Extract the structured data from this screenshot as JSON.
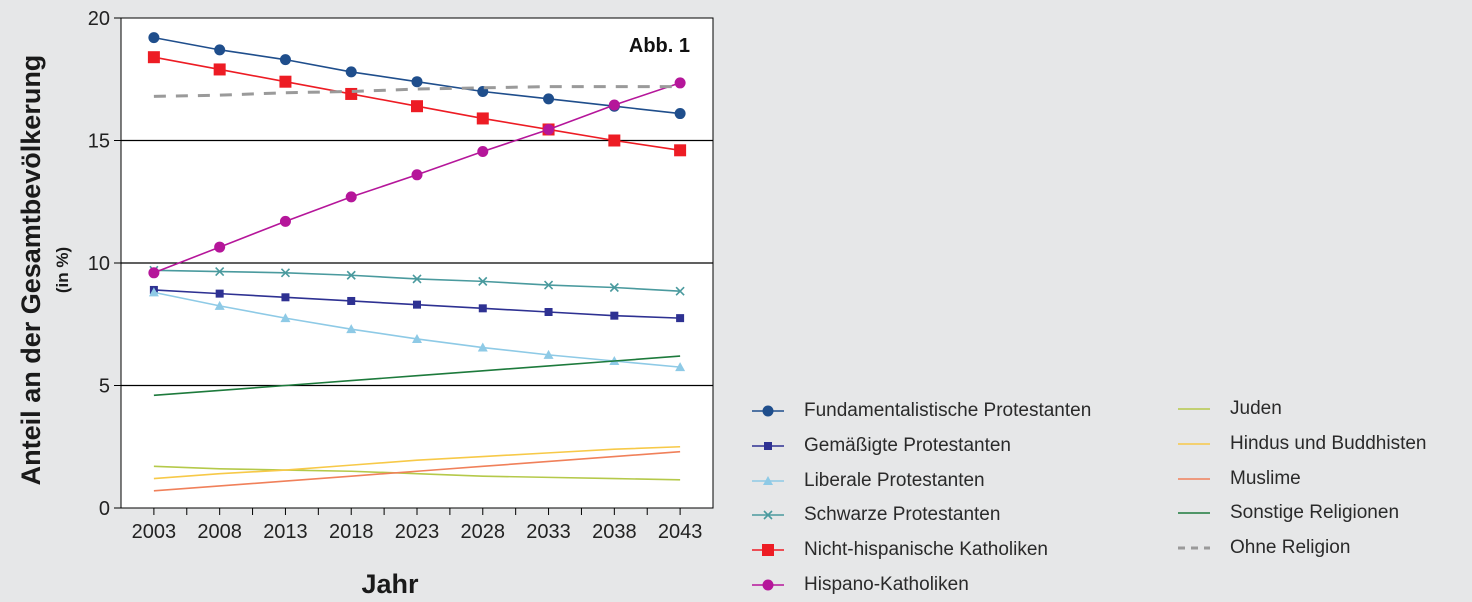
{
  "chart_data": {
    "type": "line",
    "title": "",
    "annotation": "Abb. 1",
    "xlabel": "Jahr",
    "ylabel": "Anteil an der Gesamtbevölkerung",
    "ylabel_sub": "(in %)",
    "x": [
      2003,
      2008,
      2013,
      2018,
      2023,
      2028,
      2033,
      2038,
      2043
    ],
    "xlim": [
      2000.5,
      2045.5
    ],
    "ylim": [
      0,
      20
    ],
    "yticks": [
      0,
      5,
      10,
      15,
      20
    ],
    "ytick_labels": [
      "0",
      "5",
      "10",
      "15",
      "20"
    ],
    "xtick_labels": [
      "2003",
      "2008",
      "2013",
      "2018",
      "2023",
      "2028",
      "2033",
      "2038",
      "2043"
    ],
    "grid": "horizontal at 5, 10, 15",
    "legend_position": "bottom-right, outside plot",
    "series": [
      {
        "name": "Fundamentalistische Protestanten",
        "color": "#1f4e8c",
        "marker": "circle",
        "dash": false,
        "values": [
          19.2,
          18.7,
          18.3,
          17.8,
          17.4,
          17.0,
          16.7,
          16.4,
          16.1
        ]
      },
      {
        "name": "Gemäßigte Protestanten",
        "color": "#2e3192",
        "marker": "square",
        "dash": false,
        "values": [
          8.9,
          8.75,
          8.6,
          8.45,
          8.3,
          8.15,
          8.0,
          7.85,
          7.75
        ]
      },
      {
        "name": "Liberale Protestanten",
        "color": "#8ecae6",
        "marker": "triangle",
        "dash": false,
        "values": [
          8.8,
          8.25,
          7.75,
          7.3,
          6.9,
          6.55,
          6.25,
          6.0,
          5.75
        ]
      },
      {
        "name": "Schwarze Protestanten",
        "color": "#4a9a9e",
        "marker": "x",
        "dash": false,
        "values": [
          9.7,
          9.65,
          9.6,
          9.5,
          9.35,
          9.25,
          9.1,
          9.0,
          8.85
        ]
      },
      {
        "name": "Nicht-hispanische Katholiken",
        "color": "#ed1c24",
        "marker": "bigsquare",
        "dash": false,
        "values": [
          18.4,
          17.9,
          17.4,
          16.9,
          16.4,
          15.9,
          15.45,
          15.0,
          14.6
        ]
      },
      {
        "name": "Hispano-Katholiken",
        "color": "#b5169a",
        "marker": "circle",
        "dash": false,
        "values": [
          9.6,
          10.65,
          11.7,
          12.7,
          13.6,
          14.55,
          15.45,
          16.45,
          17.35
        ]
      },
      {
        "name": "Juden",
        "color": "#b5c94a",
        "marker": "none",
        "dash": false,
        "values": [
          1.7,
          1.6,
          1.55,
          1.5,
          1.4,
          1.3,
          1.25,
          1.2,
          1.15
        ]
      },
      {
        "name": "Hindus und Buddhisten",
        "color": "#f7c948",
        "marker": "none",
        "dash": false,
        "values": [
          1.2,
          1.4,
          1.55,
          1.75,
          1.95,
          2.1,
          2.25,
          2.4,
          2.5
        ]
      },
      {
        "name": "Muslime",
        "color": "#f0805a",
        "marker": "none",
        "dash": false,
        "values": [
          0.7,
          0.9,
          1.1,
          1.3,
          1.5,
          1.7,
          1.9,
          2.1,
          2.3
        ]
      },
      {
        "name": "Sonstige Religionen",
        "color": "#1d7a3c",
        "marker": "none",
        "dash": false,
        "values": [
          4.6,
          4.8,
          5.0,
          5.2,
          5.4,
          5.6,
          5.8,
          6.0,
          6.2
        ]
      },
      {
        "name": "Ohne Religion",
        "color": "#9a9a9a",
        "marker": "none",
        "dash": true,
        "values": [
          16.8,
          16.85,
          16.95,
          17.0,
          17.1,
          17.15,
          17.2,
          17.2,
          17.2
        ]
      }
    ]
  }
}
